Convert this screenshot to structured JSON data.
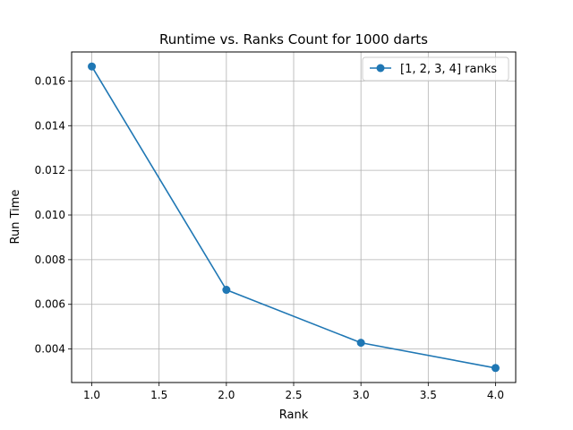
{
  "chart_data": {
    "type": "line",
    "title": "Runtime vs. Ranks Count for 1000 darts",
    "xlabel": "Rank",
    "ylabel": "Run Time",
    "xlim": [
      0.85,
      4.15
    ],
    "ylim": [
      0.0025,
      0.0173
    ],
    "xticks": [
      1.0,
      1.5,
      2.0,
      2.5,
      3.0,
      3.5,
      4.0
    ],
    "xtick_labels": [
      "1.0",
      "1.5",
      "2.0",
      "2.5",
      "3.0",
      "3.5",
      "4.0"
    ],
    "yticks": [
      0.004,
      0.006,
      0.008,
      0.01,
      0.012,
      0.014,
      0.016
    ],
    "ytick_labels": [
      "0.004",
      "0.006",
      "0.008",
      "0.010",
      "0.012",
      "0.014",
      "0.016"
    ],
    "grid": true,
    "legend_position": "top-right",
    "series": [
      {
        "name": "[1, 2, 3, 4] ranks",
        "color": "#1f77b4",
        "marker": "circle",
        "x": [
          1,
          2,
          3,
          4
        ],
        "y": [
          0.01665,
          0.00665,
          0.00428,
          0.00315
        ]
      }
    ]
  }
}
